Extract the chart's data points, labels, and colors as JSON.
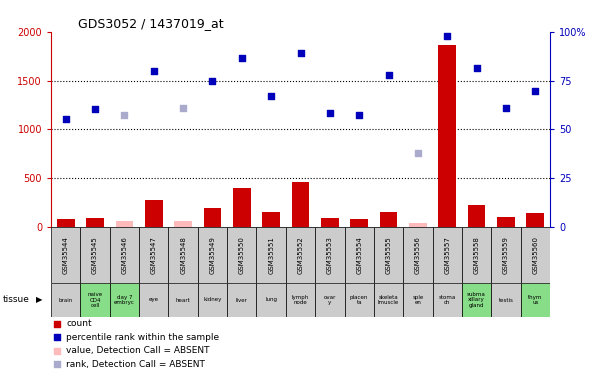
{
  "title": "GDS3052 / 1437019_at",
  "samples": [
    "GSM35544",
    "GSM35545",
    "GSM35546",
    "GSM35547",
    "GSM35548",
    "GSM35549",
    "GSM35550",
    "GSM35551",
    "GSM35552",
    "GSM35553",
    "GSM35554",
    "GSM35555",
    "GSM35556",
    "GSM35557",
    "GSM35558",
    "GSM35559",
    "GSM35560"
  ],
  "tissues": [
    "brain",
    "naive\nCD4\ncell",
    "day 7\nembryc",
    "eye",
    "heart",
    "kidney",
    "liver",
    "lung",
    "lymph\nnode",
    "ovar\ny",
    "placen\nta",
    "skeleta\nlmuscle",
    "sple\nen",
    "stoma\nch",
    "subma\nxillary\ngland",
    "testis",
    "thym\nus"
  ],
  "tissue_green": [
    false,
    true,
    true,
    false,
    false,
    false,
    false,
    false,
    false,
    false,
    false,
    false,
    false,
    false,
    true,
    false,
    true
  ],
  "count_values": [
    80,
    90,
    60,
    280,
    60,
    190,
    400,
    155,
    460,
    90,
    80,
    155,
    40,
    1870,
    225,
    100,
    140
  ],
  "count_absent": [
    false,
    false,
    true,
    false,
    true,
    false,
    false,
    false,
    false,
    false,
    false,
    false,
    true,
    false,
    false,
    false,
    false
  ],
  "rank_values": [
    1110,
    1210,
    1150,
    1600,
    1215,
    1500,
    1730,
    1345,
    1780,
    1165,
    1145,
    1555,
    760,
    1960,
    1630,
    1215,
    1390
  ],
  "rank_absent": [
    false,
    false,
    true,
    false,
    true,
    false,
    false,
    false,
    false,
    false,
    false,
    false,
    true,
    false,
    false,
    false,
    false
  ],
  "ylim_left": [
    0,
    2000
  ],
  "ylim_right": [
    0,
    100
  ],
  "yticks_left": [
    0,
    500,
    1000,
    1500,
    2000
  ],
  "yticks_right": [
    0,
    25,
    50,
    75,
    100
  ],
  "bar_color_present": "#cc0000",
  "bar_color_absent": "#ffbbbb",
  "dot_color_present": "#0000bb",
  "dot_color_absent": "#aaaacc",
  "left_tick_color": "#cc0000",
  "right_tick_color": "#0000bb",
  "bg_color": "#ffffff",
  "gsm_row_color": "#cccccc",
  "tissue_green_color": "#88dd88",
  "tissue_gray_color": "#cccccc"
}
